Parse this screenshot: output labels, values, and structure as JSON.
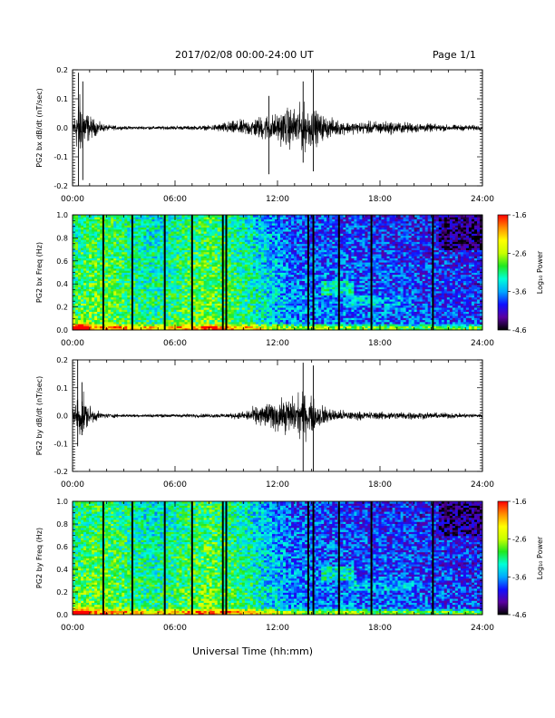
{
  "header": {
    "date_range": "2017/02/08  00:00-24:00 UT",
    "page": "Page 1/1"
  },
  "x_axis_title": "Universal Time (hh:mm)",
  "x_ticks": [
    "00:00",
    "06:00",
    "12:00",
    "18:00",
    "24:00"
  ],
  "chart_data": [
    {
      "type": "line",
      "ylabel": "PG2 bx dB/dt (nT/sec)",
      "xlim": [
        0,
        24
      ],
      "ylim": [
        -0.2,
        0.2
      ],
      "y_ticks": [
        "0.2",
        "0.1",
        "0.0",
        "-0.1",
        "-0.2"
      ],
      "x_unit": "hours UT",
      "envelope": {
        "x": [
          0,
          0.2,
          0.4,
          0.6,
          1.0,
          1.5,
          2,
          3,
          4,
          5,
          6,
          7,
          8,
          8.8,
          9,
          9.5,
          10,
          10.5,
          11,
          11.5,
          12,
          12.5,
          13,
          13.5,
          14,
          14.5,
          15,
          15.5,
          16,
          17,
          18,
          19,
          20,
          21,
          22,
          23,
          24
        ],
        "amplitude": [
          0.03,
          0.1,
          0.17,
          0.12,
          0.06,
          0.03,
          0.015,
          0.008,
          0.008,
          0.008,
          0.01,
          0.01,
          0.012,
          0.025,
          0.03,
          0.035,
          0.04,
          0.045,
          0.06,
          0.07,
          0.07,
          0.1,
          0.1,
          0.12,
          0.1,
          0.07,
          0.05,
          0.04,
          0.03,
          0.03,
          0.035,
          0.03,
          0.025,
          0.02,
          0.015,
          0.015,
          0.012
        ]
      },
      "spikes": [
        {
          "x": 0.35,
          "low": -0.22,
          "high": 0.19
        },
        {
          "x": 0.6,
          "low": -0.18,
          "high": 0.16
        },
        {
          "x": 11.5,
          "low": -0.16,
          "high": 0.11
        },
        {
          "x": 13.5,
          "low": -0.12,
          "high": 0.16
        },
        {
          "x": 14.1,
          "low": -0.15,
          "high": 0.21
        }
      ]
    },
    {
      "type": "heatmap",
      "ylabel": "PG2 bx Freq (Hz)",
      "xlim": [
        0,
        24
      ],
      "ylim": [
        0,
        1.0
      ],
      "y_ticks": [
        "1.0",
        "0.8",
        "0.6",
        "0.4",
        "0.2",
        "0.0"
      ],
      "colorbar": {
        "label": "Log₁₀ Power",
        "ticks": [
          "-1.6",
          "-2.6",
          "-3.6",
          "-4.6"
        ],
        "range": [
          -4.6,
          -1.6
        ],
        "colors": [
          "#000000",
          "#5a00a0",
          "#1010ff",
          "#00a8ff",
          "#00ffd8",
          "#20e820",
          "#c8ff00",
          "#ffff00",
          "#ff8c00",
          "#ff0000"
        ]
      },
      "gap_lines": [
        1.8,
        3.5,
        5.4,
        7.0,
        8.8,
        9.0,
        13.8,
        14.1,
        15.6,
        17.5,
        21.1
      ]
    },
    {
      "type": "line",
      "ylabel": "PG2 by dB/dt (nT/sec)",
      "xlim": [
        0,
        24
      ],
      "ylim": [
        -0.2,
        0.2
      ],
      "y_ticks": [
        "0.2",
        "0.1",
        "0.0",
        "-0.1",
        "-0.2"
      ],
      "x_unit": "hours UT",
      "envelope": {
        "x": [
          0,
          0.2,
          0.4,
          0.6,
          1.0,
          1.5,
          2,
          3,
          4,
          5,
          6,
          7,
          8,
          9,
          9.5,
          10,
          10.5,
          11,
          11.5,
          12,
          12.5,
          13,
          13.5,
          14,
          14.5,
          15,
          15.5,
          16,
          17,
          18,
          19,
          20,
          21,
          22,
          23,
          24
        ],
        "amplitude": [
          0.03,
          0.08,
          0.13,
          0.1,
          0.05,
          0.02,
          0.012,
          0.008,
          0.008,
          0.008,
          0.008,
          0.01,
          0.01,
          0.012,
          0.015,
          0.02,
          0.04,
          0.055,
          0.07,
          0.08,
          0.09,
          0.1,
          0.12,
          0.09,
          0.06,
          0.04,
          0.03,
          0.025,
          0.02,
          0.02,
          0.02,
          0.02,
          0.015,
          0.015,
          0.012,
          0.01
        ]
      },
      "spikes": [
        {
          "x": 0.3,
          "low": -0.11,
          "high": 0.2
        },
        {
          "x": 0.55,
          "low": -0.07,
          "high": 0.12
        },
        {
          "x": 13.5,
          "low": -0.2,
          "high": 0.19
        },
        {
          "x": 14.1,
          "low": -0.2,
          "high": 0.18
        }
      ]
    },
    {
      "type": "heatmap",
      "ylabel": "PG2 by Freq (Hz)",
      "xlim": [
        0,
        24
      ],
      "ylim": [
        0,
        1.0
      ],
      "y_ticks": [
        "1.0",
        "0.8",
        "0.6",
        "0.4",
        "0.2",
        "0.0"
      ],
      "colorbar": {
        "label": "Log₁₀ Power",
        "ticks": [
          "-1.6",
          "-2.6",
          "-3.6",
          "-4.6"
        ],
        "range": [
          -4.6,
          -1.6
        ],
        "colors": [
          "#000000",
          "#5a00a0",
          "#1010ff",
          "#00a8ff",
          "#00ffd8",
          "#20e820",
          "#c8ff00",
          "#ffff00",
          "#ff8c00",
          "#ff0000"
        ]
      },
      "gap_lines": [
        1.8,
        3.5,
        5.4,
        7.0,
        8.8,
        9.0,
        13.8,
        14.1,
        15.6,
        17.5,
        21.1
      ]
    }
  ]
}
